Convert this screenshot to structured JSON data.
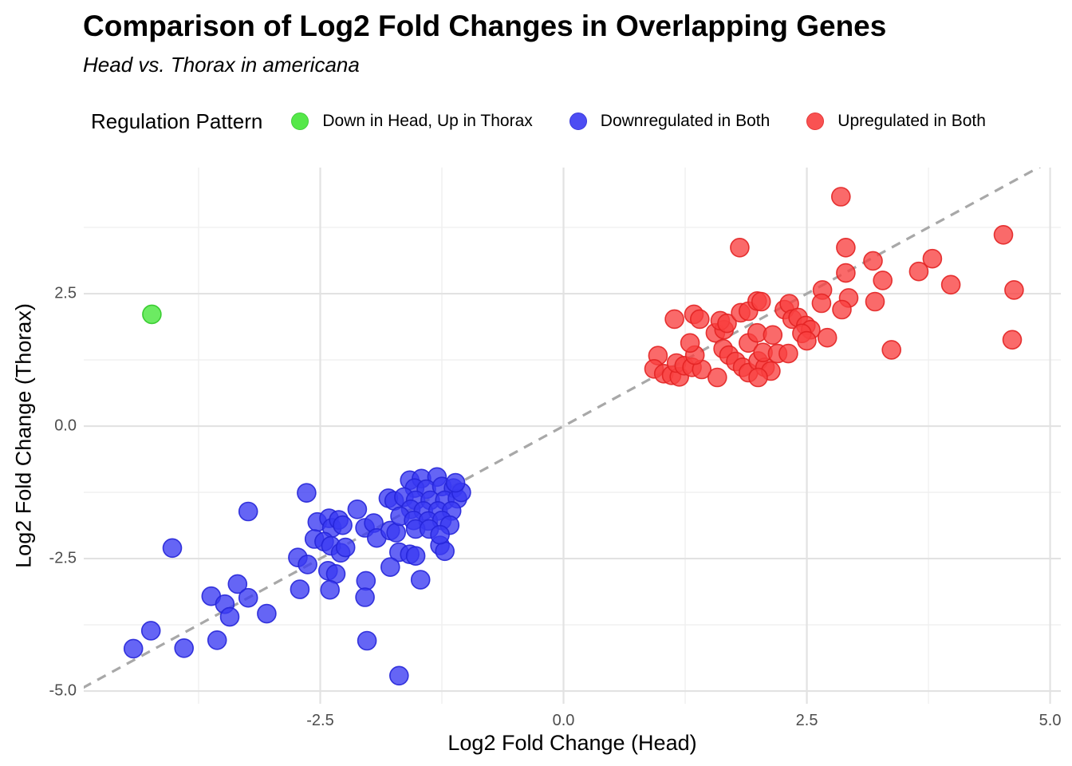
{
  "header": {
    "title": "Comparison of Log2 Fold Changes in Overlapping Genes",
    "subtitle": "Head vs. Thorax in americana"
  },
  "legend": {
    "title": "Regulation Pattern",
    "entries": [
      {
        "label": "Down in Head, Up in Thorax",
        "fill": "#43E636",
        "stroke": "#2FC926"
      },
      {
        "label": "Downregulated in Both",
        "fill": "#3A3AF2",
        "stroke": "#2525D8"
      },
      {
        "label": "Upregulated in Both",
        "fill": "#F94040",
        "stroke": "#E22222"
      }
    ]
  },
  "axes": {
    "x": {
      "title": "Log2 Fold Change (Head)",
      "tick_labels": [
        "-2.5",
        "0.0",
        "2.5",
        "5.0"
      ]
    },
    "y": {
      "title": "Log2 Fold Change (Thorax)",
      "tick_labels": [
        "2.5",
        "0.0",
        "-2.5",
        "-5.0"
      ]
    }
  },
  "style_colors": {
    "grid_major": "#E2E2E2",
    "grid_minor": "#EFEFEF",
    "identity_line": "#A8A8A8",
    "tick_text": "#4D4D4D",
    "point_opacity": 0.78
  },
  "chart_data": {
    "type": "scatter",
    "title": "Comparison of Log2 Fold Changes in Overlapping Genes",
    "subtitle": "Head vs. Thorax in americana",
    "xlabel": "Log2 Fold Change (Head)",
    "ylabel": "Log2 Fold Change (Thorax)",
    "x_range": [
      -4.93,
      5.11
    ],
    "y_range": [
      -5.24,
      4.88
    ],
    "x_ticks": [
      -2.5,
      0.0,
      2.5,
      5.0
    ],
    "y_ticks": [
      2.5,
      0.0,
      -2.5,
      -5.0
    ],
    "x_minor_ticks": [
      -3.75,
      -1.25,
      1.25,
      3.75
    ],
    "y_minor_ticks": [
      -3.75,
      -1.25,
      1.25,
      3.75
    ],
    "grid": true,
    "legend_position": "top",
    "identity_line": {
      "show": true,
      "slope": 1,
      "intercept": 0,
      "dashed": true
    },
    "series": [
      {
        "name": "Down in Head, Up in Thorax",
        "fill": "#43E636",
        "stroke": "#2FC926",
        "points": [
          [
            -4.23,
            2.11
          ]
        ]
      },
      {
        "name": "Downregulated in Both",
        "fill": "#3A3AF2",
        "stroke": "#2525D8",
        "points": [
          [
            -4.42,
            -4.2
          ],
          [
            -4.24,
            -3.86
          ],
          [
            -4.02,
            -2.3
          ],
          [
            -3.9,
            -4.19
          ],
          [
            -3.56,
            -4.04
          ],
          [
            -3.62,
            -3.21
          ],
          [
            -3.48,
            -3.36
          ],
          [
            -3.43,
            -3.6
          ],
          [
            -3.35,
            -2.98
          ],
          [
            -3.24,
            -3.24
          ],
          [
            -3.05,
            -3.54
          ],
          [
            -3.24,
            -1.61
          ],
          [
            -2.71,
            -3.08
          ],
          [
            -2.73,
            -2.48
          ],
          [
            -2.63,
            -2.61
          ],
          [
            -2.64,
            -1.26
          ],
          [
            -2.53,
            -1.81
          ],
          [
            -2.41,
            -1.74
          ],
          [
            -2.38,
            -1.92
          ],
          [
            -2.31,
            -1.77
          ],
          [
            -2.27,
            -1.87
          ],
          [
            -2.56,
            -2.13
          ],
          [
            -2.46,
            -2.18
          ],
          [
            -2.39,
            -2.26
          ],
          [
            -2.29,
            -2.39
          ],
          [
            -2.24,
            -2.29
          ],
          [
            -2.42,
            -2.73
          ],
          [
            -2.34,
            -2.79
          ],
          [
            -2.4,
            -3.09
          ],
          [
            -2.03,
            -2.92
          ],
          [
            -2.04,
            -3.23
          ],
          [
            -2.02,
            -4.05
          ],
          [
            -1.69,
            -4.71
          ],
          [
            -2.12,
            -1.57
          ],
          [
            -2.04,
            -1.92
          ],
          [
            -1.95,
            -1.83
          ],
          [
            -1.92,
            -2.11
          ],
          [
            -1.8,
            -1.36
          ],
          [
            -1.74,
            -1.41
          ],
          [
            -1.78,
            -1.97
          ],
          [
            -1.72,
            -2.01
          ],
          [
            -1.69,
            -2.38
          ],
          [
            -1.58,
            -2.42
          ],
          [
            -1.52,
            -2.45
          ],
          [
            -1.27,
            -2.25
          ],
          [
            -1.22,
            -2.36
          ],
          [
            -1.78,
            -2.66
          ],
          [
            -1.47,
            -2.9
          ],
          [
            -1.58,
            -1.02
          ],
          [
            -1.46,
            -0.99
          ],
          [
            -1.3,
            -0.96
          ],
          [
            -1.53,
            -1.17
          ],
          [
            -1.41,
            -1.19
          ],
          [
            -1.25,
            -1.14
          ],
          [
            -1.13,
            -1.17
          ],
          [
            -1.64,
            -1.34
          ],
          [
            -1.52,
            -1.4
          ],
          [
            -1.37,
            -1.4
          ],
          [
            -1.22,
            -1.4
          ],
          [
            -1.09,
            -1.37
          ],
          [
            -1.57,
            -1.57
          ],
          [
            -1.44,
            -1.6
          ],
          [
            -1.29,
            -1.6
          ],
          [
            -1.15,
            -1.6
          ],
          [
            -1.68,
            -1.7
          ],
          [
            -1.54,
            -1.78
          ],
          [
            -1.39,
            -1.79
          ],
          [
            -1.25,
            -1.78
          ],
          [
            -1.52,
            -1.94
          ],
          [
            -1.38,
            -1.94
          ],
          [
            -1.17,
            -1.87
          ],
          [
            -1.05,
            -1.25
          ],
          [
            -1.11,
            -1.07
          ],
          [
            -1.27,
            -2.05
          ]
        ]
      },
      {
        "name": "Upregulated in Both",
        "fill": "#F94040",
        "stroke": "#E22222",
        "points": [
          [
            0.97,
            1.33
          ],
          [
            0.93,
            1.08
          ],
          [
            1.03,
            0.99
          ],
          [
            1.11,
            0.96
          ],
          [
            1.19,
            0.93
          ],
          [
            1.14,
            2.02
          ],
          [
            1.34,
            2.11
          ],
          [
            1.4,
            2.02
          ],
          [
            1.16,
            1.19
          ],
          [
            1.24,
            1.14
          ],
          [
            1.32,
            1.11
          ],
          [
            1.42,
            1.07
          ],
          [
            1.35,
            1.34
          ],
          [
            1.3,
            1.57
          ],
          [
            1.56,
            1.76
          ],
          [
            1.65,
            1.82
          ],
          [
            1.61,
            1.99
          ],
          [
            1.68,
            1.94
          ],
          [
            1.64,
            1.46
          ],
          [
            1.7,
            1.34
          ],
          [
            1.77,
            1.22
          ],
          [
            1.84,
            1.11
          ],
          [
            1.9,
            1.01
          ],
          [
            1.58,
            0.92
          ],
          [
            1.81,
            3.37
          ],
          [
            1.82,
            2.14
          ],
          [
            1.9,
            2.17
          ],
          [
            1.99,
            2.36
          ],
          [
            1.9,
            1.57
          ],
          [
            1.99,
            1.76
          ],
          [
            2.0,
            1.23
          ],
          [
            2.07,
            1.11
          ],
          [
            2.13,
            1.04
          ],
          [
            2.0,
            0.92
          ],
          [
            2.03,
            2.35
          ],
          [
            2.05,
            1.39
          ],
          [
            2.15,
            1.72
          ],
          [
            2.2,
            1.37
          ],
          [
            2.27,
            2.2
          ],
          [
            2.32,
            2.31
          ],
          [
            2.35,
            2.02
          ],
          [
            2.41,
            2.05
          ],
          [
            2.49,
            1.9
          ],
          [
            2.54,
            1.82
          ],
          [
            2.45,
            1.75
          ],
          [
            2.5,
            1.61
          ],
          [
            2.71,
            1.67
          ],
          [
            2.31,
            1.37
          ],
          [
            2.66,
            2.57
          ],
          [
            2.65,
            2.32
          ],
          [
            2.93,
            2.42
          ],
          [
            2.86,
            2.2
          ],
          [
            2.9,
            2.89
          ],
          [
            2.9,
            3.37
          ],
          [
            2.85,
            4.33
          ],
          [
            3.18,
            3.12
          ],
          [
            3.28,
            2.75
          ],
          [
            3.2,
            2.35
          ],
          [
            3.65,
            2.92
          ],
          [
            3.79,
            3.16
          ],
          [
            3.98,
            2.67
          ],
          [
            3.37,
            1.44
          ],
          [
            4.52,
            3.61
          ],
          [
            4.63,
            2.57
          ],
          [
            4.61,
            1.63
          ]
        ]
      }
    ]
  }
}
